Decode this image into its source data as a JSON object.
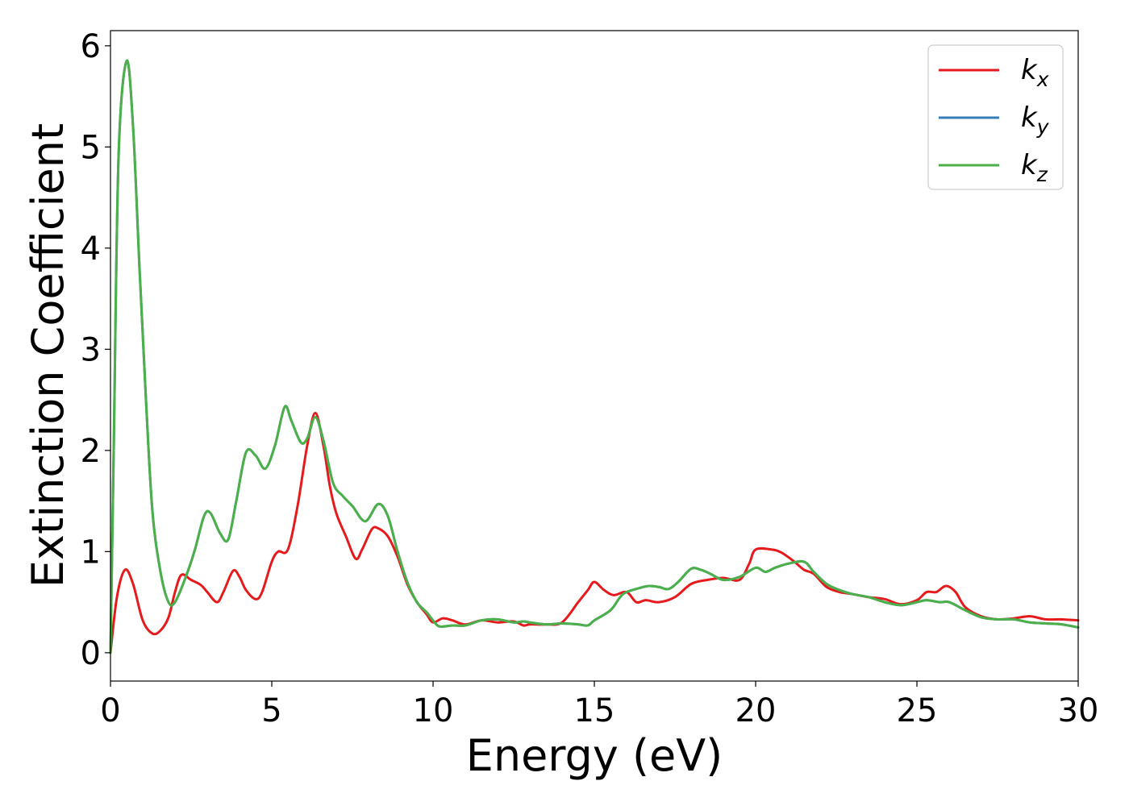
{
  "chart_data": {
    "type": "line",
    "title": "",
    "xlabel": "Energy (eV)",
    "ylabel": "Extinction Coefficient",
    "xlim": [
      0,
      30
    ],
    "ylim": [
      -0.28,
      6.15
    ],
    "xticks": [
      0,
      5,
      10,
      15,
      20,
      25,
      30
    ],
    "yticks": [
      0,
      1,
      2,
      3,
      4,
      5,
      6
    ],
    "grid": false,
    "legend_position": "top-right",
    "series": [
      {
        "name": "k_x",
        "legend_base": "k",
        "legend_sub": "x",
        "color": "#e41a1c",
        "points": [
          [
            0,
            0
          ],
          [
            0.2,
            0.55
          ],
          [
            0.45,
            0.82
          ],
          [
            0.7,
            0.68
          ],
          [
            1.0,
            0.32
          ],
          [
            1.3,
            0.19
          ],
          [
            1.55,
            0.22
          ],
          [
            1.8,
            0.35
          ],
          [
            2.0,
            0.6
          ],
          [
            2.2,
            0.77
          ],
          [
            2.5,
            0.72
          ],
          [
            2.8,
            0.67
          ],
          [
            3.0,
            0.6
          ],
          [
            3.3,
            0.5
          ],
          [
            3.5,
            0.6
          ],
          [
            3.8,
            0.81
          ],
          [
            4.0,
            0.75
          ],
          [
            4.2,
            0.62
          ],
          [
            4.5,
            0.53
          ],
          [
            4.7,
            0.6
          ],
          [
            5.0,
            0.9
          ],
          [
            5.2,
            1.0
          ],
          [
            5.5,
            1.02
          ],
          [
            5.8,
            1.45
          ],
          [
            6.1,
            2.05
          ],
          [
            6.35,
            2.37
          ],
          [
            6.6,
            2.05
          ],
          [
            6.8,
            1.65
          ],
          [
            7.0,
            1.38
          ],
          [
            7.3,
            1.15
          ],
          [
            7.6,
            0.93
          ],
          [
            7.8,
            1.02
          ],
          [
            8.1,
            1.22
          ],
          [
            8.3,
            1.23
          ],
          [
            8.6,
            1.15
          ],
          [
            8.9,
            0.95
          ],
          [
            9.2,
            0.68
          ],
          [
            9.5,
            0.5
          ],
          [
            9.8,
            0.38
          ],
          [
            10.0,
            0.3
          ],
          [
            10.3,
            0.34
          ],
          [
            10.6,
            0.32
          ],
          [
            11.0,
            0.28
          ],
          [
            11.5,
            0.32
          ],
          [
            12.0,
            0.3
          ],
          [
            12.5,
            0.31
          ],
          [
            12.8,
            0.27
          ],
          [
            13.0,
            0.28
          ],
          [
            13.5,
            0.28
          ],
          [
            14.0,
            0.3
          ],
          [
            14.5,
            0.5
          ],
          [
            14.8,
            0.62
          ],
          [
            15.0,
            0.7
          ],
          [
            15.3,
            0.62
          ],
          [
            15.6,
            0.57
          ],
          [
            16.0,
            0.6
          ],
          [
            16.3,
            0.5
          ],
          [
            16.6,
            0.52
          ],
          [
            17.0,
            0.5
          ],
          [
            17.5,
            0.55
          ],
          [
            18.0,
            0.68
          ],
          [
            18.5,
            0.72
          ],
          [
            19.0,
            0.74
          ],
          [
            19.5,
            0.72
          ],
          [
            19.8,
            0.88
          ],
          [
            20.0,
            1.02
          ],
          [
            20.5,
            1.02
          ],
          [
            20.8,
            0.99
          ],
          [
            21.2,
            0.9
          ],
          [
            21.5,
            0.82
          ],
          [
            21.8,
            0.78
          ],
          [
            22.2,
            0.65
          ],
          [
            22.6,
            0.6
          ],
          [
            23.0,
            0.58
          ],
          [
            23.5,
            0.55
          ],
          [
            24.0,
            0.53
          ],
          [
            24.5,
            0.48
          ],
          [
            25.0,
            0.52
          ],
          [
            25.3,
            0.6
          ],
          [
            25.6,
            0.6
          ],
          [
            25.9,
            0.66
          ],
          [
            26.2,
            0.6
          ],
          [
            26.5,
            0.45
          ],
          [
            27.0,
            0.36
          ],
          [
            27.5,
            0.33
          ],
          [
            28.0,
            0.34
          ],
          [
            28.5,
            0.36
          ],
          [
            29.0,
            0.33
          ],
          [
            29.5,
            0.33
          ],
          [
            30.0,
            0.32
          ]
        ]
      },
      {
        "name": "k_y",
        "legend_base": "k",
        "legend_sub": "y",
        "color": "#377eb8",
        "points": [
          [
            0,
            0
          ],
          [
            0.1,
            2.0
          ],
          [
            0.25,
            4.9
          ],
          [
            0.5,
            5.85
          ],
          [
            0.7,
            5.2
          ],
          [
            0.9,
            3.8
          ],
          [
            1.1,
            2.5
          ],
          [
            1.3,
            1.4
          ],
          [
            1.55,
            0.8
          ],
          [
            1.8,
            0.5
          ],
          [
            2.0,
            0.5
          ],
          [
            2.3,
            0.72
          ],
          [
            2.6,
            1.0
          ],
          [
            2.9,
            1.35
          ],
          [
            3.1,
            1.38
          ],
          [
            3.4,
            1.18
          ],
          [
            3.65,
            1.12
          ],
          [
            3.9,
            1.5
          ],
          [
            4.2,
            1.98
          ],
          [
            4.5,
            1.95
          ],
          [
            4.8,
            1.82
          ],
          [
            5.1,
            2.05
          ],
          [
            5.4,
            2.43
          ],
          [
            5.6,
            2.3
          ],
          [
            5.9,
            2.08
          ],
          [
            6.1,
            2.12
          ],
          [
            6.35,
            2.33
          ],
          [
            6.6,
            2.1
          ],
          [
            6.9,
            1.68
          ],
          [
            7.2,
            1.55
          ],
          [
            7.5,
            1.45
          ],
          [
            7.9,
            1.3
          ],
          [
            8.3,
            1.47
          ],
          [
            8.6,
            1.35
          ],
          [
            8.9,
            1.0
          ],
          [
            9.2,
            0.7
          ],
          [
            9.5,
            0.5
          ],
          [
            9.8,
            0.4
          ],
          [
            10.0,
            0.32
          ],
          [
            10.2,
            0.26
          ],
          [
            10.6,
            0.27
          ],
          [
            11.0,
            0.27
          ],
          [
            11.5,
            0.32
          ],
          [
            12.0,
            0.33
          ],
          [
            12.5,
            0.3
          ],
          [
            12.8,
            0.31
          ],
          [
            13.0,
            0.3
          ],
          [
            13.5,
            0.28
          ],
          [
            14.0,
            0.29
          ],
          [
            14.5,
            0.28
          ],
          [
            14.8,
            0.27
          ],
          [
            15.0,
            0.32
          ],
          [
            15.5,
            0.42
          ],
          [
            15.8,
            0.55
          ],
          [
            16.0,
            0.6
          ],
          [
            16.4,
            0.64
          ],
          [
            16.7,
            0.66
          ],
          [
            17.0,
            0.65
          ],
          [
            17.3,
            0.63
          ],
          [
            17.6,
            0.7
          ],
          [
            18.0,
            0.83
          ],
          [
            18.3,
            0.82
          ],
          [
            18.6,
            0.78
          ],
          [
            19.0,
            0.72
          ],
          [
            19.5,
            0.75
          ],
          [
            20.0,
            0.84
          ],
          [
            20.3,
            0.8
          ],
          [
            20.6,
            0.84
          ],
          [
            21.0,
            0.88
          ],
          [
            21.5,
            0.9
          ],
          [
            21.8,
            0.8
          ],
          [
            22.2,
            0.68
          ],
          [
            22.6,
            0.62
          ],
          [
            23.0,
            0.58
          ],
          [
            23.5,
            0.55
          ],
          [
            24.0,
            0.5
          ],
          [
            24.5,
            0.47
          ],
          [
            25.0,
            0.5
          ],
          [
            25.3,
            0.52
          ],
          [
            25.7,
            0.5
          ],
          [
            26.0,
            0.5
          ],
          [
            26.5,
            0.42
          ],
          [
            27.0,
            0.35
          ],
          [
            27.5,
            0.33
          ],
          [
            28.0,
            0.33
          ],
          [
            28.5,
            0.3
          ],
          [
            29.0,
            0.29
          ],
          [
            29.5,
            0.28
          ],
          [
            30.0,
            0.25
          ]
        ]
      },
      {
        "name": "k_z",
        "legend_base": "k",
        "legend_sub": "z",
        "color": "#4daf4a",
        "points": [
          [
            0,
            0
          ],
          [
            0.1,
            2.0
          ],
          [
            0.25,
            4.9
          ],
          [
            0.5,
            5.85
          ],
          [
            0.7,
            5.2
          ],
          [
            0.9,
            3.8
          ],
          [
            1.1,
            2.5
          ],
          [
            1.3,
            1.4
          ],
          [
            1.55,
            0.8
          ],
          [
            1.8,
            0.5
          ],
          [
            2.0,
            0.5
          ],
          [
            2.3,
            0.72
          ],
          [
            2.6,
            1.0
          ],
          [
            2.9,
            1.35
          ],
          [
            3.1,
            1.38
          ],
          [
            3.4,
            1.18
          ],
          [
            3.65,
            1.12
          ],
          [
            3.9,
            1.5
          ],
          [
            4.2,
            1.98
          ],
          [
            4.5,
            1.95
          ],
          [
            4.8,
            1.82
          ],
          [
            5.1,
            2.05
          ],
          [
            5.4,
            2.43
          ],
          [
            5.6,
            2.3
          ],
          [
            5.9,
            2.08
          ],
          [
            6.1,
            2.12
          ],
          [
            6.35,
            2.33
          ],
          [
            6.6,
            2.1
          ],
          [
            6.9,
            1.68
          ],
          [
            7.2,
            1.55
          ],
          [
            7.5,
            1.45
          ],
          [
            7.9,
            1.3
          ],
          [
            8.3,
            1.47
          ],
          [
            8.6,
            1.35
          ],
          [
            8.9,
            1.0
          ],
          [
            9.2,
            0.7
          ],
          [
            9.5,
            0.5
          ],
          [
            9.8,
            0.4
          ],
          [
            10.0,
            0.32
          ],
          [
            10.2,
            0.26
          ],
          [
            10.6,
            0.27
          ],
          [
            11.0,
            0.27
          ],
          [
            11.5,
            0.32
          ],
          [
            12.0,
            0.33
          ],
          [
            12.5,
            0.3
          ],
          [
            12.8,
            0.31
          ],
          [
            13.0,
            0.3
          ],
          [
            13.5,
            0.28
          ],
          [
            14.0,
            0.29
          ],
          [
            14.5,
            0.28
          ],
          [
            14.8,
            0.27
          ],
          [
            15.0,
            0.32
          ],
          [
            15.5,
            0.42
          ],
          [
            15.8,
            0.55
          ],
          [
            16.0,
            0.6
          ],
          [
            16.4,
            0.64
          ],
          [
            16.7,
            0.66
          ],
          [
            17.0,
            0.65
          ],
          [
            17.3,
            0.63
          ],
          [
            17.6,
            0.7
          ],
          [
            18.0,
            0.83
          ],
          [
            18.3,
            0.82
          ],
          [
            18.6,
            0.78
          ],
          [
            19.0,
            0.72
          ],
          [
            19.5,
            0.75
          ],
          [
            20.0,
            0.84
          ],
          [
            20.3,
            0.8
          ],
          [
            20.6,
            0.84
          ],
          [
            21.0,
            0.88
          ],
          [
            21.5,
            0.9
          ],
          [
            21.8,
            0.8
          ],
          [
            22.2,
            0.68
          ],
          [
            22.6,
            0.62
          ],
          [
            23.0,
            0.58
          ],
          [
            23.5,
            0.55
          ],
          [
            24.0,
            0.5
          ],
          [
            24.5,
            0.47
          ],
          [
            25.0,
            0.5
          ],
          [
            25.3,
            0.52
          ],
          [
            25.7,
            0.5
          ],
          [
            26.0,
            0.5
          ],
          [
            26.5,
            0.42
          ],
          [
            27.0,
            0.35
          ],
          [
            27.5,
            0.33
          ],
          [
            28.0,
            0.33
          ],
          [
            28.5,
            0.3
          ],
          [
            29.0,
            0.29
          ],
          [
            29.5,
            0.28
          ],
          [
            30.0,
            0.25
          ]
        ]
      }
    ]
  }
}
